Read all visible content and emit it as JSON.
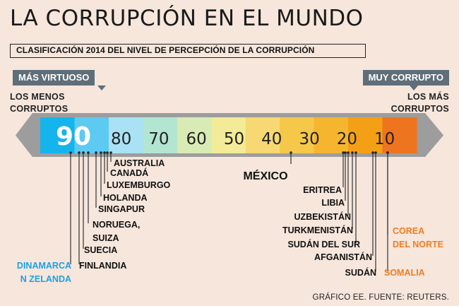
{
  "title": "LA CORRUPCIÓN EN EL MUNDO",
  "subtitle": "CLASIFICACIÓN 2014 DEL NIVEL DE PERCEPCIÓN DE LA CORRUPCIÓN",
  "left_tag": "MÁS VIRTUOSO",
  "right_tag": "MUY CORRUPTO",
  "left_note": [
    "LOS MENOS",
    "CORRUPTOS"
  ],
  "right_note": [
    "LOS MÁS",
    "CORRUPTOS"
  ],
  "credit": "GRÁFICO EE. FUENTE: REUTERS.",
  "colors": {
    "background": "#f6e6dc",
    "scale_frame": "#9d9d9d",
    "highlight_blue": "#1aa3e2",
    "highlight_orange": "#f07c22",
    "mexico_label": "#111111",
    "leader_line": "#333333",
    "segments": [
      "#16b4ec",
      "#5dcaf2",
      "#a9e1f5",
      "#b2e6d1",
      "#d9ebb4",
      "#f3eb97",
      "#f7d873",
      "#f5c84a",
      "#f5b52f",
      "#f4a016",
      "#ee741f"
    ]
  },
  "chart_data": {
    "type": "scatter",
    "title": "CLASIFICACIÓN 2014 DEL NIVEL DE PERCEPCIÓN DE LA CORRUPCIÓN",
    "x_axis": {
      "direction": "descending",
      "ticks": [
        90,
        80,
        70,
        60,
        50,
        40,
        30,
        20,
        10
      ],
      "tick_labels": [
        "90",
        "80",
        "70",
        "60",
        "50",
        "40",
        "30",
        "20",
        "10"
      ],
      "highlighted_tick": "90",
      "range": [
        100,
        0
      ]
    },
    "points": [
      {
        "label_lines": [
          "DINAMARCA",
          "N ZELANDA"
        ],
        "value": 92,
        "highlight": "blue"
      },
      {
        "label_lines": [
          "FINLANDIA"
        ],
        "value": 89
      },
      {
        "label_lines": [
          "SUECIA"
        ],
        "value": 87
      },
      {
        "label_lines": [
          "NORUEGA,",
          "SUIZA"
        ],
        "value": 86
      },
      {
        "label_lines": [
          "SINGAPUR"
        ],
        "value": 84
      },
      {
        "label_lines": [
          "HOLANDA"
        ],
        "value": 83
      },
      {
        "label_lines": [
          "LUXEMBURGO"
        ],
        "value": 82
      },
      {
        "label_lines": [
          "CANADÁ"
        ],
        "value": 81
      },
      {
        "label_lines": [
          "AUSTRALIA"
        ],
        "value": 80
      },
      {
        "label_lines": [
          "MÉXICO"
        ],
        "value": 35,
        "highlight": "bold"
      },
      {
        "label_lines": [
          "ERITREA"
        ],
        "value": 18
      },
      {
        "label_lines": [
          "LIBIA"
        ],
        "value": 18
      },
      {
        "label_lines": [
          "UZBEKISTÁN"
        ],
        "value": 18
      },
      {
        "label_lines": [
          "TURKMENISTÁN"
        ],
        "value": 17
      },
      {
        "label_lines": [
          "SUDÁN DEL SUR"
        ],
        "value": 15
      },
      {
        "label_lines": [
          "AFGANISTÁN"
        ],
        "value": 12
      },
      {
        "label_lines": [
          "SUDÁN"
        ],
        "value": 11
      },
      {
        "label_lines": [
          "COREA",
          "DEL NORTE"
        ],
        "value": 8,
        "highlight": "orange"
      },
      {
        "label_lines": [
          "SOMALIA"
        ],
        "value": 8,
        "highlight": "orange"
      }
    ]
  }
}
